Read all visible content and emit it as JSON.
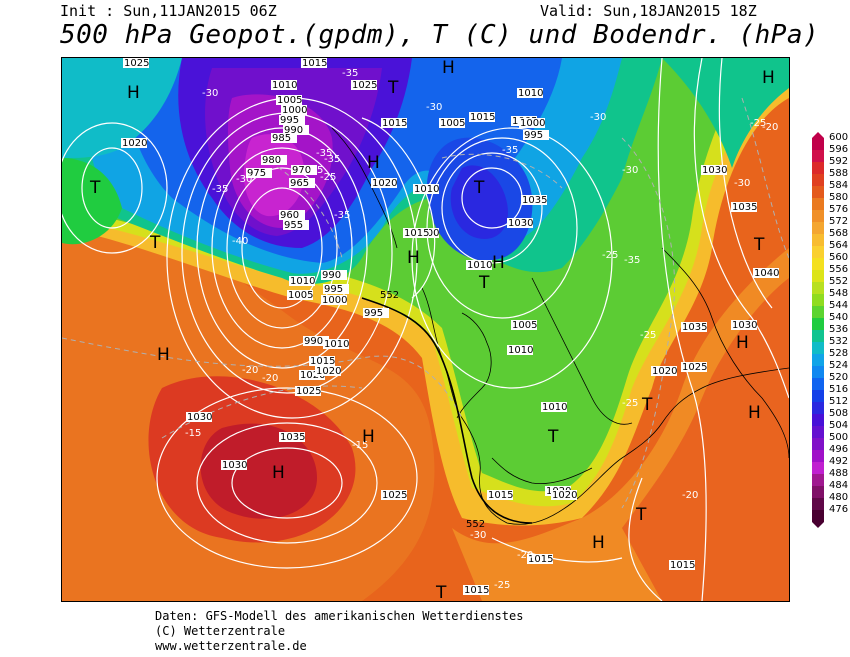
{
  "header": {
    "init": "Init : Sun,11JAN2015 06Z",
    "valid": "Valid: Sun,18JAN2015 18Z",
    "title": "500 hPa Geopot.(gpdm), T (C) und Bodendr. (hPa)"
  },
  "footer": {
    "line1": "Daten: GFS-Modell des amerikanischen Wetterdienstes",
    "line2": "(C) Wetterzentrale",
    "line3": "www.wetterzentrale.de"
  },
  "legend": {
    "values": [
      "600",
      "596",
      "592",
      "588",
      "584",
      "580",
      "576",
      "572",
      "568",
      "564",
      "560",
      "556",
      "552",
      "548",
      "544",
      "540",
      "536",
      "532",
      "528",
      "524",
      "520",
      "516",
      "512",
      "508",
      "504",
      "500",
      "496",
      "492",
      "488",
      "484",
      "480",
      "476"
    ],
    "colors": [
      "#c0004a",
      "#d0104a",
      "#dc2a2a",
      "#e04020",
      "#e45a1c",
      "#ea7a20",
      "#f09028",
      "#f4a630",
      "#f8bc30",
      "#fad030",
      "#f4e020",
      "#dce418",
      "#b8e020",
      "#90dc20",
      "#5cd430",
      "#20cc40",
      "#10c490",
      "#10bcc8",
      "#10a4e8",
      "#1088f0",
      "#1064f0",
      "#1440e8",
      "#2a28e0",
      "#4810d8",
      "#6410d0",
      "#8010c8",
      "#a010c8",
      "#c020d0",
      "#a01890",
      "#801068",
      "#600848",
      "#480030"
    ]
  },
  "map": {
    "highs": [
      "H",
      "H",
      "H",
      "H",
      "H",
      "H",
      "H",
      "H",
      "H",
      "H",
      "H",
      "H"
    ],
    "lows": [
      "T",
      "T",
      "T",
      "T",
      "T",
      "T",
      "T",
      "T",
      "T",
      "T"
    ],
    "pressure_labels": [
      "1025",
      "1020",
      "1015",
      "1010",
      "1005",
      "1000",
      "995",
      "990",
      "985",
      "980",
      "975",
      "970",
      "965",
      "960",
      "955",
      "1025",
      "1020",
      "1015",
      "1010",
      "1005",
      "1000",
      "995",
      "990",
      "1030",
      "1035",
      "1040",
      "1030",
      "1035",
      "1025",
      "1020",
      "1015",
      "1030",
      "1035",
      "1025",
      "1020",
      "1010",
      "1015",
      "1020",
      "1005",
      "1010",
      "1000",
      "995",
      "990",
      "1015",
      "1010",
      "1005",
      "1000",
      "995",
      "1035",
      "1030",
      "1010",
      "1025",
      "1015",
      "1020",
      "1005",
      "1030",
      "1015",
      "1020",
      "1010",
      "1010",
      "1015",
      "1015"
    ],
    "temp_labels": [
      "-35",
      "-30",
      "-35",
      "-25",
      "-30",
      "-35",
      "-40",
      "-35",
      "-35",
      "-30",
      "-35",
      "-30",
      "-35",
      "-25",
      "-30",
      "-30",
      "-35",
      "-25",
      "-20",
      "-25",
      "-20",
      "-15",
      "-20",
      "-15",
      "-30",
      "-25",
      "-20",
      "-20",
      "-25",
      "-20"
    ],
    "contour_552": "552"
  }
}
